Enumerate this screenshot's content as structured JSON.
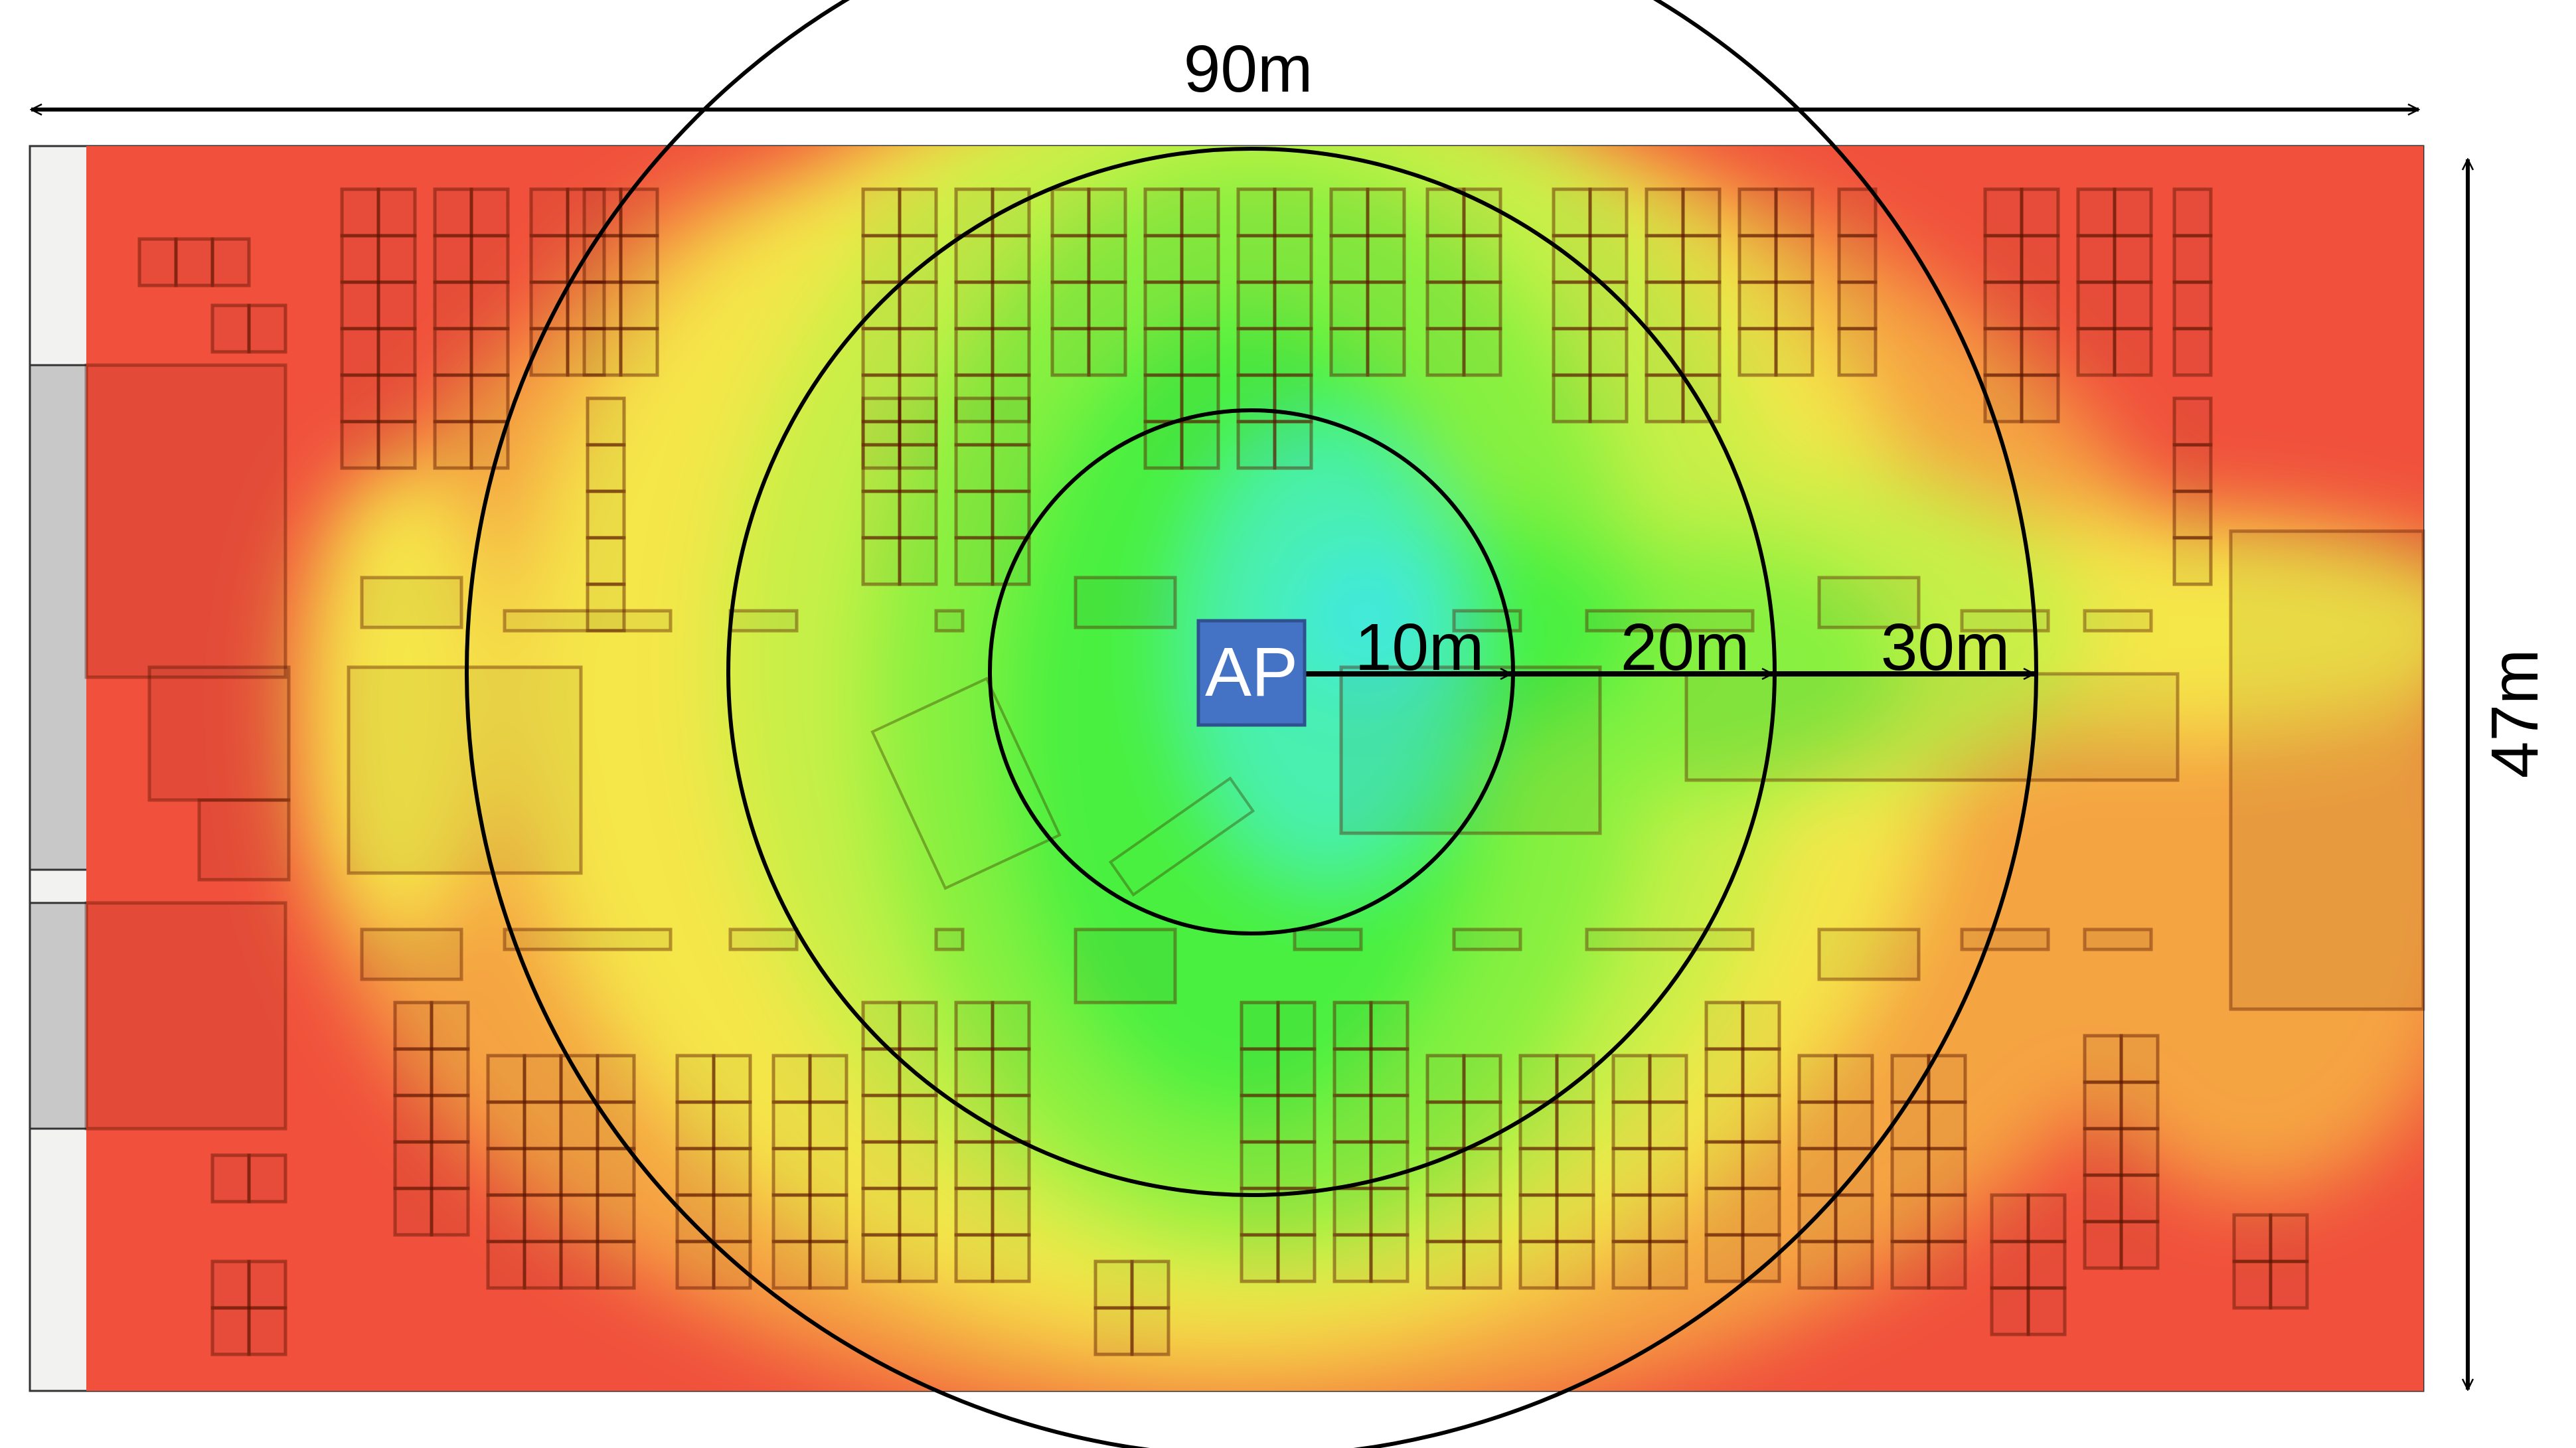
{
  "dimensions": {
    "width_label": "90m",
    "height_label": "47m"
  },
  "access_point": {
    "label": "AP",
    "color": "#4472c4"
  },
  "range_rings": [
    {
      "label": "10m",
      "radius_m": 10
    },
    {
      "label": "20m",
      "radius_m": 20
    },
    {
      "label": "30m",
      "radius_m": 30
    }
  ],
  "heatmap_colors": {
    "weak": "#f0503c",
    "low": "#f5a443",
    "medium": "#f5e64a",
    "fair": "#c8f046",
    "good": "#88f040",
    "strong": "#48f040",
    "very_strong": "#48f0b0",
    "peak": "#40e8e0"
  }
}
